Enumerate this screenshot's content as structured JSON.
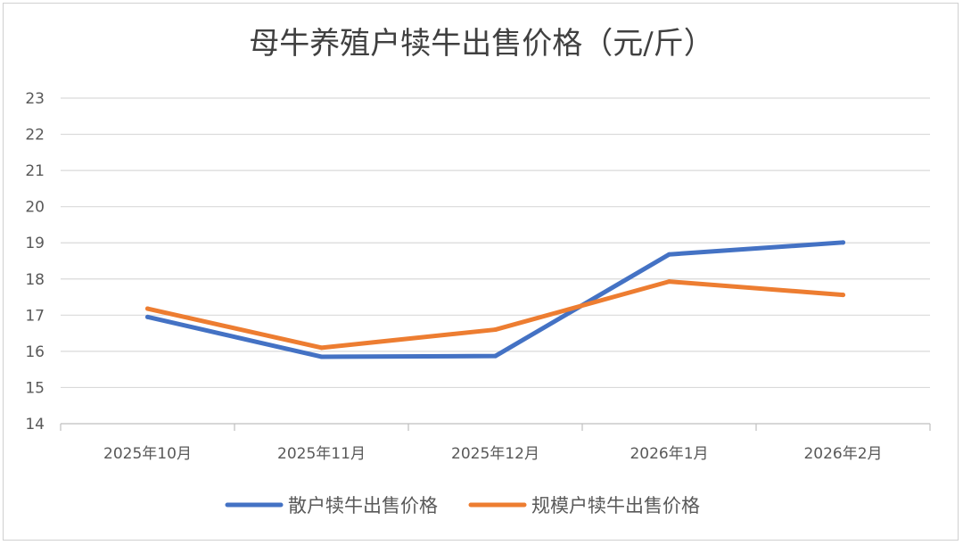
{
  "chart_data": {
    "type": "line",
    "title": "母牛养殖户犊牛出售价格（元/斤）",
    "categories": [
      "2025年10月",
      "2025年11月",
      "2025年12月",
      "2026年1月",
      "2026年2月"
    ],
    "series": [
      {
        "name": "散户犊牛出售价格",
        "values": [
          16.95,
          15.85,
          15.87,
          18.68,
          19.01
        ],
        "color": "#4472C4"
      },
      {
        "name": "规模户犊牛出售价格",
        "values": [
          17.18,
          16.1,
          16.6,
          17.93,
          17.56
        ],
        "color": "#ED7D31"
      }
    ],
    "ylim": [
      14,
      23
    ],
    "yticks": [
      "14",
      "15",
      "16",
      "17",
      "18",
      "19",
      "20",
      "21",
      "22",
      "23"
    ],
    "grid": true,
    "legend": "bottom"
  }
}
